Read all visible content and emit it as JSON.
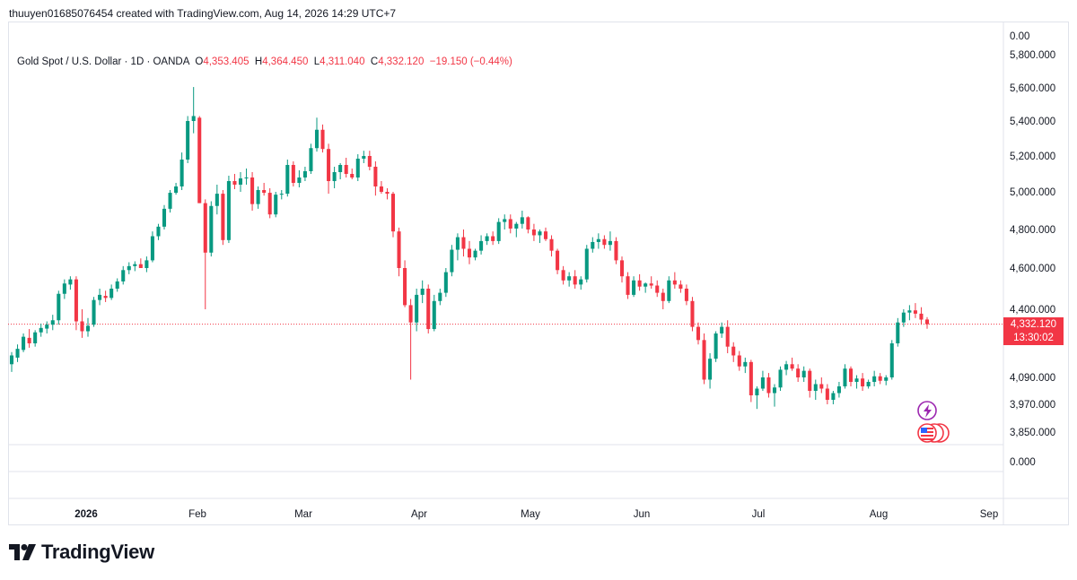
{
  "header": {
    "author_line": "thuuyen01685076454 created with TradingView.com, Aug 14, 2026 14:29 UTC+7"
  },
  "legend": {
    "symbol": "Gold Spot / U.S. Dollar · 1D · OANDA",
    "open_label": "O",
    "open": "4,353.405",
    "high_label": "H",
    "high": "4,364.450",
    "low_label": "L",
    "low": "4,311.040",
    "close_label": "C",
    "close": "4,332.120",
    "change": "−19.150 (−0.44%)"
  },
  "last_price": {
    "value": "4,332.120",
    "countdown": "13:30:02"
  },
  "brand": {
    "name": "TradingView"
  },
  "colors": {
    "up": "#089981",
    "down": "#f23645",
    "text": "#131722",
    "border": "#e0e3eb"
  },
  "icons": [
    "flash-event-icon",
    "us-flag-event-icon"
  ],
  "chart_data": {
    "type": "candlestick",
    "title": "Gold Spot / U.S. Dollar · 1D · OANDA",
    "y_axis_labels": [
      {
        "label": "0.00",
        "value": null
      },
      {
        "label": "5,800.000",
        "value": 5800
      },
      {
        "label": "5,600.000",
        "value": 5600
      },
      {
        "label": "5,400.000",
        "value": 5400
      },
      {
        "label": "5,200.000",
        "value": 5200
      },
      {
        "label": "5,000.000",
        "value": 5000
      },
      {
        "label": "4,800.000",
        "value": 4800
      },
      {
        "label": "4,600.000",
        "value": 4600
      },
      {
        "label": "4,400.000",
        "value": 4400
      },
      {
        "label": "4,090.000",
        "value": 4090
      },
      {
        "label": "3,970.000",
        "value": 3970
      },
      {
        "label": "3,850.000",
        "value": 3850
      },
      {
        "label": "0.000",
        "value": null
      }
    ],
    "x_axis_labels": [
      "2026",
      "Feb",
      "Mar",
      "Apr",
      "May",
      "Jun",
      "Jul",
      "Aug",
      "Sep"
    ],
    "y_scale": "log",
    "last_close": 4332.12,
    "candles": [
      {
        "o": 4150,
        "h": 4205,
        "l": 4115,
        "c": 4190
      },
      {
        "o": 4180,
        "h": 4240,
        "l": 4160,
        "c": 4220
      },
      {
        "o": 4215,
        "h": 4290,
        "l": 4205,
        "c": 4275
      },
      {
        "o": 4270,
        "h": 4310,
        "l": 4225,
        "c": 4245
      },
      {
        "o": 4245,
        "h": 4305,
        "l": 4230,
        "c": 4295
      },
      {
        "o": 4295,
        "h": 4335,
        "l": 4275,
        "c": 4315
      },
      {
        "o": 4312,
        "h": 4345,
        "l": 4290,
        "c": 4330
      },
      {
        "o": 4330,
        "h": 4375,
        "l": 4305,
        "c": 4350
      },
      {
        "o": 4350,
        "h": 4490,
        "l": 4330,
        "c": 4475
      },
      {
        "o": 4475,
        "h": 4545,
        "l": 4450,
        "c": 4525
      },
      {
        "o": 4520,
        "h": 4560,
        "l": 4495,
        "c": 4545
      },
      {
        "o": 4545,
        "h": 4560,
        "l": 4305,
        "c": 4345
      },
      {
        "o": 4345,
        "h": 4400,
        "l": 4270,
        "c": 4300
      },
      {
        "o": 4300,
        "h": 4360,
        "l": 4275,
        "c": 4325
      },
      {
        "o": 4330,
        "h": 4460,
        "l": 4320,
        "c": 4445
      },
      {
        "o": 4445,
        "h": 4500,
        "l": 4420,
        "c": 4470
      },
      {
        "o": 4465,
        "h": 4490,
        "l": 4435,
        "c": 4455
      },
      {
        "o": 4455,
        "h": 4520,
        "l": 4445,
        "c": 4500
      },
      {
        "o": 4500,
        "h": 4550,
        "l": 4485,
        "c": 4535
      },
      {
        "o": 4535,
        "h": 4610,
        "l": 4520,
        "c": 4590
      },
      {
        "o": 4590,
        "h": 4630,
        "l": 4570,
        "c": 4610
      },
      {
        "o": 4610,
        "h": 4635,
        "l": 4585,
        "c": 4620
      },
      {
        "o": 4620,
        "h": 4650,
        "l": 4600,
        "c": 4600
      },
      {
        "o": 4600,
        "h": 4660,
        "l": 4580,
        "c": 4640
      },
      {
        "o": 4640,
        "h": 4790,
        "l": 4630,
        "c": 4765
      },
      {
        "o": 4765,
        "h": 4830,
        "l": 4745,
        "c": 4815
      },
      {
        "o": 4815,
        "h": 4930,
        "l": 4800,
        "c": 4910
      },
      {
        "o": 4910,
        "h": 5010,
        "l": 4890,
        "c": 4995
      },
      {
        "o": 4995,
        "h": 5050,
        "l": 4985,
        "c": 5030
      },
      {
        "o": 5030,
        "h": 5220,
        "l": 5010,
        "c": 5180
      },
      {
        "o": 5180,
        "h": 5430,
        "l": 5160,
        "c": 5400
      },
      {
        "o": 5400,
        "h": 5605,
        "l": 5330,
        "c": 5430
      },
      {
        "o": 5420,
        "h": 5430,
        "l": 4940,
        "c": 4940
      },
      {
        "o": 4940,
        "h": 4960,
        "l": 4400,
        "c": 4680
      },
      {
        "o": 4680,
        "h": 4950,
        "l": 4660,
        "c": 4925
      },
      {
        "o": 4925,
        "h": 5040,
        "l": 4880,
        "c": 4990
      },
      {
        "o": 4990,
        "h": 5010,
        "l": 4720,
        "c": 4745
      },
      {
        "o": 4745,
        "h": 5090,
        "l": 4730,
        "c": 5060
      },
      {
        "o": 5060,
        "h": 5100,
        "l": 5015,
        "c": 5040
      },
      {
        "o": 5040,
        "h": 5110,
        "l": 5000,
        "c": 5075
      },
      {
        "o": 5075,
        "h": 5130,
        "l": 5040,
        "c": 5080
      },
      {
        "o": 5080,
        "h": 5110,
        "l": 4900,
        "c": 4935
      },
      {
        "o": 4935,
        "h": 5030,
        "l": 4910,
        "c": 5010
      },
      {
        "o": 5010,
        "h": 5050,
        "l": 4980,
        "c": 4995
      },
      {
        "o": 4995,
        "h": 5020,
        "l": 4860,
        "c": 4880
      },
      {
        "o": 4880,
        "h": 5000,
        "l": 4865,
        "c": 4985
      },
      {
        "o": 4985,
        "h": 5010,
        "l": 4960,
        "c": 4990
      },
      {
        "o": 4990,
        "h": 5180,
        "l": 4975,
        "c": 5150
      },
      {
        "o": 5150,
        "h": 5170,
        "l": 5030,
        "c": 5050
      },
      {
        "o": 5050,
        "h": 5120,
        "l": 5025,
        "c": 5080
      },
      {
        "o": 5080,
        "h": 5140,
        "l": 5060,
        "c": 5115
      },
      {
        "o": 5115,
        "h": 5270,
        "l": 5100,
        "c": 5245
      },
      {
        "o": 5245,
        "h": 5420,
        "l": 5225,
        "c": 5350
      },
      {
        "o": 5350,
        "h": 5380,
        "l": 5220,
        "c": 5240
      },
      {
        "o": 5240,
        "h": 5270,
        "l": 4990,
        "c": 5060
      },
      {
        "o": 5060,
        "h": 5140,
        "l": 5020,
        "c": 5110
      },
      {
        "o": 5110,
        "h": 5160,
        "l": 5070,
        "c": 5150
      },
      {
        "o": 5150,
        "h": 5190,
        "l": 5080,
        "c": 5100
      },
      {
        "o": 5100,
        "h": 5130,
        "l": 5070,
        "c": 5080
      },
      {
        "o": 5080,
        "h": 5210,
        "l": 5060,
        "c": 5185
      },
      {
        "o": 5185,
        "h": 5230,
        "l": 5160,
        "c": 5200
      },
      {
        "o": 5200,
        "h": 5230,
        "l": 5120,
        "c": 5140
      },
      {
        "o": 5140,
        "h": 5170,
        "l": 4980,
        "c": 5030
      },
      {
        "o": 5030,
        "h": 5060,
        "l": 4990,
        "c": 5000
      },
      {
        "o": 5000,
        "h": 5020,
        "l": 4960,
        "c": 4990
      },
      {
        "o": 4990,
        "h": 5000,
        "l": 4760,
        "c": 4790
      },
      {
        "o": 4790,
        "h": 4810,
        "l": 4560,
        "c": 4600
      },
      {
        "o": 4600,
        "h": 4640,
        "l": 4410,
        "c": 4420
      },
      {
        "o": 4420,
        "h": 4450,
        "l": 4080,
        "c": 4340
      },
      {
        "o": 4340,
        "h": 4500,
        "l": 4300,
        "c": 4470
      },
      {
        "o": 4470,
        "h": 4540,
        "l": 4430,
        "c": 4500
      },
      {
        "o": 4500,
        "h": 4520,
        "l": 4290,
        "c": 4310
      },
      {
        "o": 4310,
        "h": 4470,
        "l": 4300,
        "c": 4440
      },
      {
        "o": 4440,
        "h": 4500,
        "l": 4420,
        "c": 4480
      },
      {
        "o": 4480,
        "h": 4600,
        "l": 4460,
        "c": 4580
      },
      {
        "o": 4580,
        "h": 4720,
        "l": 4560,
        "c": 4695
      },
      {
        "o": 4695,
        "h": 4780,
        "l": 4640,
        "c": 4760
      },
      {
        "o": 4760,
        "h": 4800,
        "l": 4660,
        "c": 4700
      },
      {
        "o": 4700,
        "h": 4740,
        "l": 4620,
        "c": 4655
      },
      {
        "o": 4655,
        "h": 4700,
        "l": 4640,
        "c": 4690
      },
      {
        "o": 4690,
        "h": 4770,
        "l": 4670,
        "c": 4740
      },
      {
        "o": 4740,
        "h": 4780,
        "l": 4720,
        "c": 4765
      },
      {
        "o": 4765,
        "h": 4790,
        "l": 4720,
        "c": 4740
      },
      {
        "o": 4740,
        "h": 4860,
        "l": 4725,
        "c": 4840
      },
      {
        "o": 4840,
        "h": 4880,
        "l": 4800,
        "c": 4855
      },
      {
        "o": 4855,
        "h": 4880,
        "l": 4780,
        "c": 4805
      },
      {
        "o": 4805,
        "h": 4840,
        "l": 4760,
        "c": 4830
      },
      {
        "o": 4830,
        "h": 4900,
        "l": 4805,
        "c": 4865
      },
      {
        "o": 4865,
        "h": 4870,
        "l": 4780,
        "c": 4800
      },
      {
        "o": 4800,
        "h": 4830,
        "l": 4740,
        "c": 4770
      },
      {
        "o": 4770,
        "h": 4800,
        "l": 4730,
        "c": 4790
      },
      {
        "o": 4790,
        "h": 4810,
        "l": 4740,
        "c": 4750
      },
      {
        "o": 4750,
        "h": 4770,
        "l": 4660,
        "c": 4690
      },
      {
        "o": 4690,
        "h": 4700,
        "l": 4570,
        "c": 4590
      },
      {
        "o": 4590,
        "h": 4610,
        "l": 4520,
        "c": 4540
      },
      {
        "o": 4540,
        "h": 4580,
        "l": 4510,
        "c": 4560
      },
      {
        "o": 4560,
        "h": 4590,
        "l": 4500,
        "c": 4520
      },
      {
        "o": 4520,
        "h": 4560,
        "l": 4495,
        "c": 4545
      },
      {
        "o": 4545,
        "h": 4720,
        "l": 4530,
        "c": 4700
      },
      {
        "o": 4700,
        "h": 4760,
        "l": 4680,
        "c": 4735
      },
      {
        "o": 4735,
        "h": 4780,
        "l": 4700,
        "c": 4750
      },
      {
        "o": 4750,
        "h": 4770,
        "l": 4700,
        "c": 4720
      },
      {
        "o": 4720,
        "h": 4790,
        "l": 4690,
        "c": 4740
      },
      {
        "o": 4740,
        "h": 4760,
        "l": 4620,
        "c": 4640
      },
      {
        "o": 4640,
        "h": 4660,
        "l": 4530,
        "c": 4560
      },
      {
        "o": 4560,
        "h": 4580,
        "l": 4450,
        "c": 4470
      },
      {
        "o": 4470,
        "h": 4560,
        "l": 4460,
        "c": 4540
      },
      {
        "o": 4540,
        "h": 4570,
        "l": 4490,
        "c": 4510
      },
      {
        "o": 4510,
        "h": 4530,
        "l": 4480,
        "c": 4525
      },
      {
        "o": 4525,
        "h": 4560,
        "l": 4500,
        "c": 4515
      },
      {
        "o": 4515,
        "h": 4540,
        "l": 4460,
        "c": 4480
      },
      {
        "o": 4480,
        "h": 4500,
        "l": 4400,
        "c": 4440
      },
      {
        "o": 4440,
        "h": 4560,
        "l": 4430,
        "c": 4540
      },
      {
        "o": 4540,
        "h": 4580,
        "l": 4500,
        "c": 4520
      },
      {
        "o": 4520,
        "h": 4540,
        "l": 4480,
        "c": 4500
      },
      {
        "o": 4500,
        "h": 4520,
        "l": 4420,
        "c": 4440
      },
      {
        "o": 4440,
        "h": 4460,
        "l": 4300,
        "c": 4320
      },
      {
        "o": 4320,
        "h": 4340,
        "l": 4240,
        "c": 4260
      },
      {
        "o": 4260,
        "h": 4290,
        "l": 4060,
        "c": 4080
      },
      {
        "o": 4080,
        "h": 4200,
        "l": 4040,
        "c": 4175
      },
      {
        "o": 4175,
        "h": 4300,
        "l": 4160,
        "c": 4290
      },
      {
        "o": 4290,
        "h": 4340,
        "l": 4270,
        "c": 4320
      },
      {
        "o": 4320,
        "h": 4350,
        "l": 4200,
        "c": 4230
      },
      {
        "o": 4230,
        "h": 4250,
        "l": 4160,
        "c": 4190
      },
      {
        "o": 4190,
        "h": 4210,
        "l": 4120,
        "c": 4140
      },
      {
        "o": 4140,
        "h": 4180,
        "l": 4110,
        "c": 4160
      },
      {
        "o": 4160,
        "h": 4170,
        "l": 3980,
        "c": 4010
      },
      {
        "o": 4010,
        "h": 4050,
        "l": 3950,
        "c": 4040
      },
      {
        "o": 4040,
        "h": 4120,
        "l": 4030,
        "c": 4090
      },
      {
        "o": 4090,
        "h": 4110,
        "l": 4000,
        "c": 4020
      },
      {
        "o": 4020,
        "h": 4060,
        "l": 3960,
        "c": 4045
      },
      {
        "o": 4045,
        "h": 4140,
        "l": 4030,
        "c": 4125
      },
      {
        "o": 4125,
        "h": 4165,
        "l": 4100,
        "c": 4150
      },
      {
        "o": 4150,
        "h": 4180,
        "l": 4120,
        "c": 4130
      },
      {
        "o": 4130,
        "h": 4150,
        "l": 4070,
        "c": 4090
      },
      {
        "o": 4090,
        "h": 4140,
        "l": 4070,
        "c": 4120
      },
      {
        "o": 4120,
        "h": 4130,
        "l": 4000,
        "c": 4030
      },
      {
        "o": 4030,
        "h": 4080,
        "l": 3990,
        "c": 4060
      },
      {
        "o": 4060,
        "h": 4090,
        "l": 4020,
        "c": 4040
      },
      {
        "o": 4040,
        "h": 4060,
        "l": 3970,
        "c": 3990
      },
      {
        "o": 3990,
        "h": 4030,
        "l": 3970,
        "c": 4020
      },
      {
        "o": 4020,
        "h": 4070,
        "l": 4000,
        "c": 4050
      },
      {
        "o": 4050,
        "h": 4150,
        "l": 4040,
        "c": 4130
      },
      {
        "o": 4130,
        "h": 4140,
        "l": 4050,
        "c": 4070
      },
      {
        "o": 4070,
        "h": 4100,
        "l": 4040,
        "c": 4085
      },
      {
        "o": 4085,
        "h": 4110,
        "l": 4030,
        "c": 4050
      },
      {
        "o": 4050,
        "h": 4080,
        "l": 4040,
        "c": 4070
      },
      {
        "o": 4070,
        "h": 4120,
        "l": 4050,
        "c": 4095
      },
      {
        "o": 4095,
        "h": 4110,
        "l": 4060,
        "c": 4075
      },
      {
        "o": 4075,
        "h": 4100,
        "l": 4055,
        "c": 4090
      },
      {
        "o": 4090,
        "h": 4260,
        "l": 4080,
        "c": 4245
      },
      {
        "o": 4245,
        "h": 4360,
        "l": 4230,
        "c": 4340
      },
      {
        "o": 4340,
        "h": 4400,
        "l": 4320,
        "c": 4385
      },
      {
        "o": 4385,
        "h": 4420,
        "l": 4350,
        "c": 4395
      },
      {
        "o": 4395,
        "h": 4430,
        "l": 4360,
        "c": 4380
      },
      {
        "o": 4380,
        "h": 4410,
        "l": 4330,
        "c": 4353
      },
      {
        "o": 4353.405,
        "h": 4364.45,
        "l": 4311.04,
        "c": 4332.12
      }
    ]
  }
}
